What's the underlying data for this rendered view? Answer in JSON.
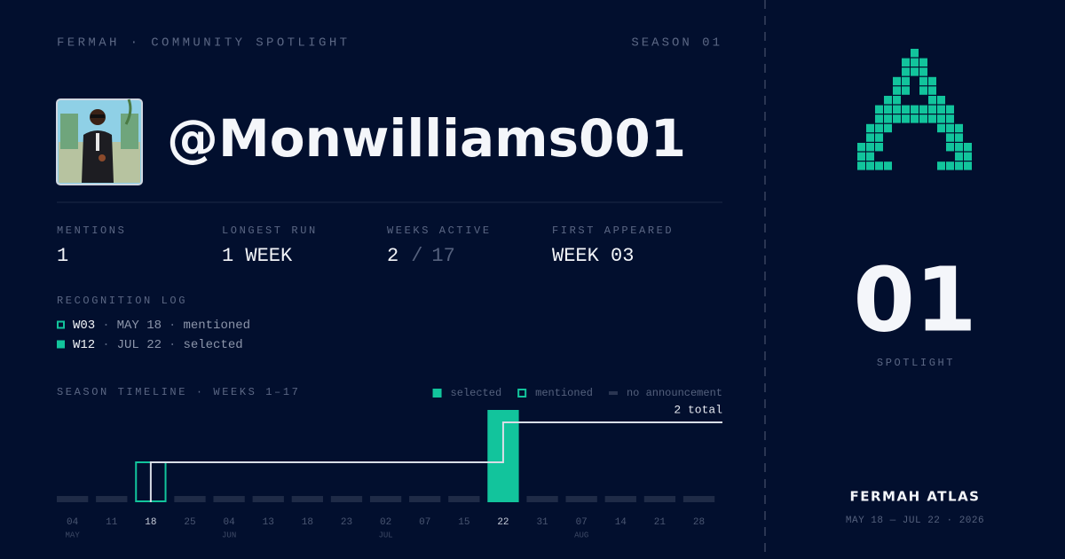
{
  "header": {
    "brand": "FERMAH · COMMUNITY SPOTLIGHT",
    "season": "SEASON 01"
  },
  "profile": {
    "handle": "@Monwilliams001"
  },
  "stats": [
    {
      "label": "MENTIONS",
      "value": "1"
    },
    {
      "label": "LONGEST RUN",
      "value": "1 WEEK"
    },
    {
      "label": "WEEKS ACTIVE",
      "value": "2",
      "separator": "/",
      "total": "17"
    },
    {
      "label": "FIRST APPEARED",
      "value": "WEEK 03"
    }
  ],
  "log": {
    "title": "RECOGNITION LOG",
    "separator": "·",
    "entries": [
      {
        "week": "W03",
        "date": "MAY 18",
        "status": "mentioned"
      },
      {
        "week": "W12",
        "date": "JUL 22",
        "status": "selected"
      }
    ]
  },
  "timeline": {
    "title": "SEASON TIMELINE · WEEKS 1–17",
    "legend": [
      {
        "status": "selected",
        "label": "selected"
      },
      {
        "status": "mentioned",
        "label": "mentioned"
      },
      {
        "status": "none",
        "label": "no announcement"
      }
    ],
    "total_label": "2 total",
    "weeks": [
      {
        "day": "04",
        "month": "MAY",
        "status": "none"
      },
      {
        "day": "11",
        "month": null,
        "status": "none"
      },
      {
        "day": "18",
        "month": null,
        "status": "mentioned"
      },
      {
        "day": "25",
        "month": null,
        "status": "none"
      },
      {
        "day": "04",
        "month": "JUN",
        "status": "none"
      },
      {
        "day": "13",
        "month": null,
        "status": "none"
      },
      {
        "day": "18",
        "month": null,
        "status": "none"
      },
      {
        "day": "23",
        "month": null,
        "status": "none"
      },
      {
        "day": "02",
        "month": "JUL",
        "status": "none"
      },
      {
        "day": "07",
        "month": null,
        "status": "none"
      },
      {
        "day": "15",
        "month": null,
        "status": "none"
      },
      {
        "day": "22",
        "month": null,
        "status": "selected"
      },
      {
        "day": "31",
        "month": null,
        "status": "none"
      },
      {
        "day": "07",
        "month": "AUG",
        "status": "none"
      },
      {
        "day": "14",
        "month": null,
        "status": "none"
      },
      {
        "day": "21",
        "month": null,
        "status": "none"
      },
      {
        "day": "28",
        "month": null,
        "status": "none"
      }
    ],
    "counts": [
      0,
      0,
      1,
      0,
      0,
      0,
      0,
      0,
      0,
      0,
      0,
      1,
      0,
      0,
      0,
      0,
      0
    ]
  },
  "sidebar": {
    "number": "01",
    "caption": "SPOTLIGHT",
    "name": "FERMAH ATLAS",
    "range": "MAY 18 — JUL 22 · 2026"
  }
}
